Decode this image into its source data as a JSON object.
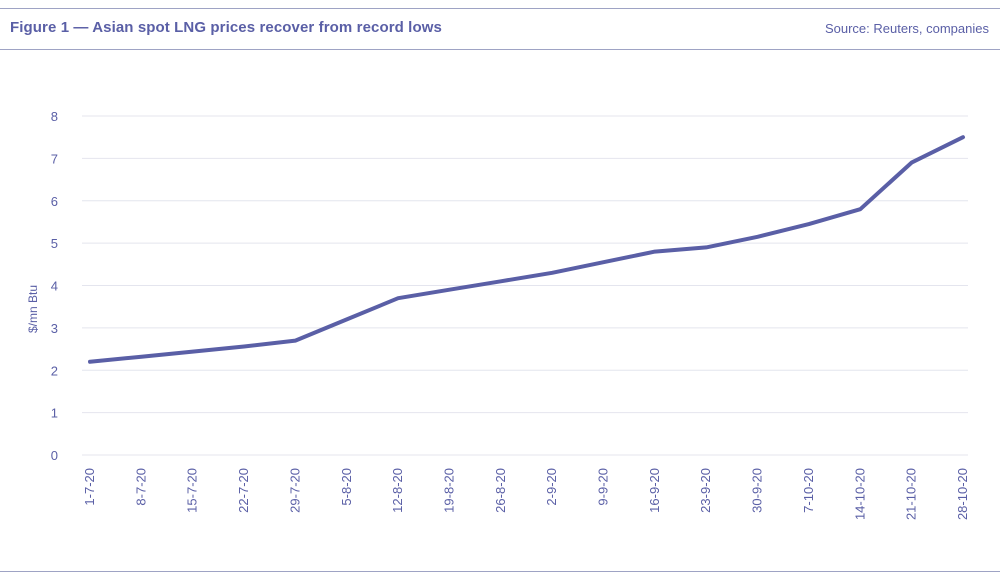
{
  "header": {
    "title": "Figure 1 — Asian spot LNG prices recover from record lows",
    "source": "Source: Reuters, companies"
  },
  "colors": {
    "line": "#5a5fa6",
    "text": "#5a5fa6",
    "grid": "#e4e5ee",
    "rule": "#9ea3c4"
  },
  "chart_data": {
    "type": "line",
    "title": "Figure 1 — Asian spot LNG prices recover from record lows",
    "xlabel": "",
    "ylabel": "$/mn Btu",
    "ylim": [
      0,
      8
    ],
    "yticks": [
      0,
      1,
      2,
      3,
      4,
      5,
      6,
      7,
      8
    ],
    "grid": true,
    "legend": "none",
    "categories": [
      "1-7-20",
      "8-7-20",
      "15-7-20",
      "22-7-20",
      "29-7-20",
      "5-8-20",
      "12-8-20",
      "19-8-20",
      "26-8-20",
      "2-9-20",
      "9-9-20",
      "16-9-20",
      "23-9-20",
      "30-9-20",
      "7-10-20",
      "14-10-20",
      "21-10-20",
      "28-10-20"
    ],
    "series": [
      {
        "values": [
          2.2,
          2.32,
          2.44,
          2.56,
          2.7,
          3.2,
          3.7,
          3.9,
          4.1,
          4.3,
          4.55,
          4.8,
          4.9,
          5.15,
          5.45,
          5.8,
          6.9,
          7.5
        ]
      }
    ]
  }
}
